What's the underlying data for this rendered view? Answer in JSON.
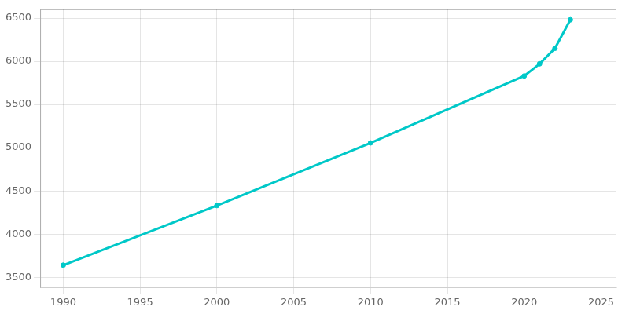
{
  "chart_data": {
    "type": "line",
    "x": [
      1990,
      2000,
      2010,
      2020,
      2021,
      2022,
      2023
    ],
    "values": [
      3640,
      4330,
      5055,
      5830,
      5970,
      6150,
      6480
    ],
    "color": "#00c8c8",
    "marker": "circle",
    "xlim": [
      1988.5,
      2026
    ],
    "ylim": [
      3380,
      6600
    ],
    "xticks": [
      1990,
      1995,
      2000,
      2005,
      2010,
      2015,
      2020,
      2025
    ],
    "yticks": [
      3500,
      4000,
      4500,
      5000,
      5500,
      6000,
      6500
    ],
    "grid": true
  }
}
